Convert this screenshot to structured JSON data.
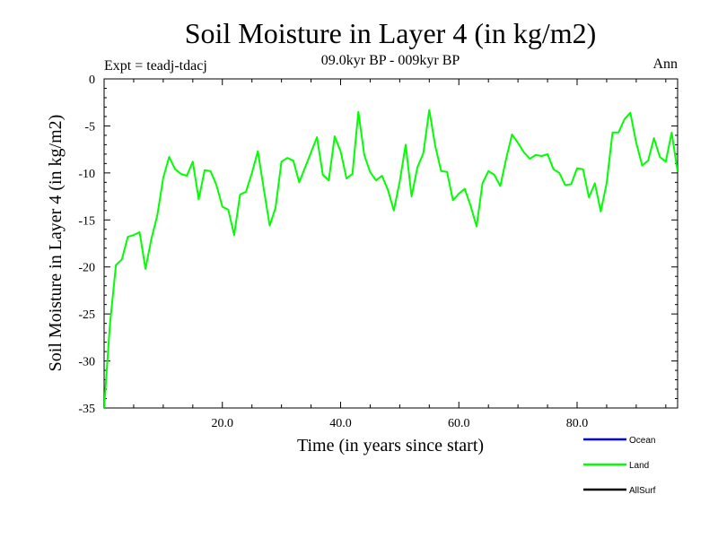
{
  "chart_data": {
    "type": "line",
    "title": "Soil Moisture in Layer 4 (in kg/m2)",
    "subtitle_left": "Expt = teadj-tdacj",
    "subtitle_center": "09.0kyr BP - 009kyr BP",
    "subtitle_right": "Ann",
    "xlabel": "Time (in years since start)",
    "ylabel": "Soil Moisture in Layer 4 (in kg/m2)",
    "xlim": [
      0,
      97
    ],
    "ylim": [
      -35,
      0
    ],
    "xticks": [
      20,
      40,
      60,
      80
    ],
    "xtick_labels": [
      "20.0",
      "40.0",
      "60.0",
      "80.0"
    ],
    "yticks": [
      0,
      -5,
      -10,
      -15,
      -20,
      -25,
      -30,
      -35
    ],
    "ytick_labels": [
      "0",
      "-5",
      "-10",
      "-15",
      "-20",
      "-25",
      "-30",
      "-35"
    ],
    "legend": [
      {
        "name": "Ocean",
        "color": "#0000ff"
      },
      {
        "name": "Land",
        "color": "#00ff00"
      },
      {
        "name": "AllSurf",
        "color": "#000000"
      }
    ],
    "legend_position": "bottom-right",
    "series": [
      {
        "name": "Land",
        "color": "#00ff00",
        "x": [
          0,
          1,
          2,
          3,
          4,
          5,
          6,
          7,
          8,
          9,
          10,
          11,
          12,
          13,
          14,
          15,
          16,
          17,
          18,
          19,
          20,
          21,
          22,
          23,
          24,
          25,
          26,
          27,
          28,
          29,
          30,
          31,
          32,
          33,
          34,
          35,
          36,
          37,
          38,
          39,
          40,
          41,
          42,
          43,
          44,
          45,
          46,
          47,
          48,
          49,
          50,
          51,
          52,
          53,
          54,
          55,
          56,
          57,
          58,
          59,
          60,
          61,
          62,
          63,
          64,
          65,
          66,
          67,
          68,
          69,
          70,
          71,
          72,
          73,
          74,
          75,
          76,
          77,
          78,
          79,
          80,
          81,
          82,
          83,
          84,
          85,
          86,
          87,
          88,
          89,
          90,
          91,
          92,
          93,
          94,
          95,
          96,
          97
        ],
        "values": [
          -35,
          -26,
          -19.8,
          -19.2,
          -16.8,
          -16.6,
          -16.3,
          -20.2,
          -17,
          -14.5,
          -10.5,
          -8.3,
          -9.6,
          -10.1,
          -10.3,
          -8.8,
          -12.8,
          -9.7,
          -9.8,
          -11.3,
          -13.6,
          -13.9,
          -16.6,
          -12.3,
          -12,
          -10,
          -7.7,
          -11.7,
          -15.6,
          -13.7,
          -8.8,
          -8.4,
          -8.7,
          -11,
          -9.4,
          -7.8,
          -6.2,
          -10.2,
          -10.8,
          -6.1,
          -7.7,
          -10.6,
          -10.1,
          -3.5,
          -8.1,
          -9.9,
          -10.8,
          -10.3,
          -11.8,
          -14,
          -10.9,
          -7,
          -12.5,
          -9.4,
          -7.9,
          -3.3,
          -7.1,
          -9.8,
          -9.9,
          -12.9,
          -12.2,
          -11.7,
          -13.5,
          -15.7,
          -11.1,
          -9.8,
          -10.2,
          -11.4,
          -8.5,
          -5.9,
          -6.8,
          -7.8,
          -8.5,
          -8.1,
          -8.2,
          -8,
          -9.6,
          -10,
          -11.3,
          -11.2,
          -9.5,
          -9.6,
          -12.6,
          -11.1,
          -14.1,
          -11.1,
          -5.7,
          -5.7,
          -4.3,
          -3.6,
          -6.8,
          -9.2,
          -8.7,
          -6.3,
          -8.3,
          -8.8,
          -5.7,
          -9.9
        ]
      }
    ]
  }
}
